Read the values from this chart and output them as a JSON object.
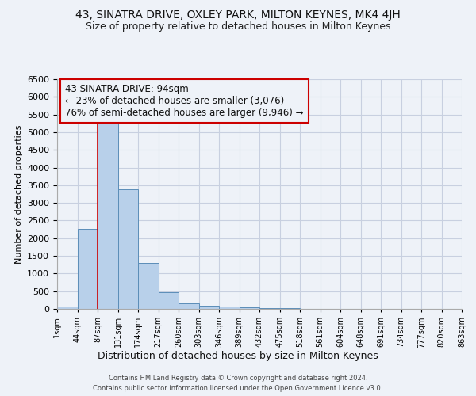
{
  "title": "43, SINATRA DRIVE, OXLEY PARK, MILTON KEYNES, MK4 4JH",
  "subtitle": "Size of property relative to detached houses in Milton Keynes",
  "xlabel": "Distribution of detached houses by size in Milton Keynes",
  "ylabel": "Number of detached properties",
  "footer1": "Contains HM Land Registry data © Crown copyright and database right 2024.",
  "footer2": "Contains public sector information licensed under the Open Government Licence v3.0.",
  "annotation_line1": "43 SINATRA DRIVE: 94sqm",
  "annotation_line2": "← 23% of detached houses are smaller (3,076)",
  "annotation_line3": "76% of semi-detached houses are larger (9,946) →",
  "bar_values": [
    70,
    2270,
    5450,
    3390,
    1290,
    480,
    160,
    90,
    60,
    50,
    30,
    20,
    10,
    5,
    5,
    5,
    3,
    2,
    2,
    1
  ],
  "bin_labels": [
    "1sqm",
    "44sqm",
    "87sqm",
    "131sqm",
    "174sqm",
    "217sqm",
    "260sqm",
    "303sqm",
    "346sqm",
    "389sqm",
    "432sqm",
    "475sqm",
    "518sqm",
    "561sqm",
    "604sqm",
    "648sqm",
    "691sqm",
    "734sqm",
    "777sqm",
    "820sqm",
    "863sqm"
  ],
  "bar_color": "#b8d0ea",
  "bar_edge_color": "#5b8db8",
  "annotation_box_color": "#cc0000",
  "background_color": "#eef2f8",
  "grid_color": "#c8d0e0",
  "vline_color": "#cc0000",
  "vline_x": 2,
  "ylim": [
    0,
    6500
  ],
  "yticks": [
    0,
    500,
    1000,
    1500,
    2000,
    2500,
    3000,
    3500,
    4000,
    4500,
    5000,
    5500,
    6000,
    6500
  ],
  "title_fontsize": 10,
  "subtitle_fontsize": 9,
  "ylabel_fontsize": 8,
  "xlabel_fontsize": 9,
  "ytick_fontsize": 8,
  "xtick_fontsize": 7,
  "footer_fontsize": 6
}
